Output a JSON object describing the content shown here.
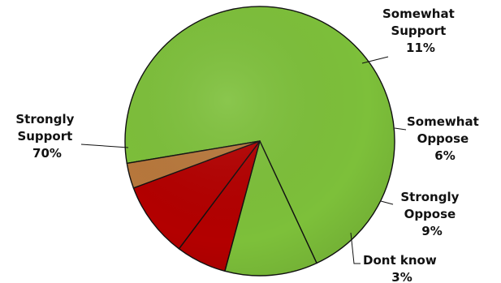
{
  "chart_data": {
    "type": "pie",
    "title": "",
    "slices": [
      {
        "label_lines": [
          "Strongly",
          "Support"
        ],
        "value": 70,
        "value_label": "70%",
        "color": "#7dc03a"
      },
      {
        "label_lines": [
          "Somewhat",
          "Support"
        ],
        "value": 11,
        "value_label": "11%",
        "color": "#7dc03a"
      },
      {
        "label_lines": [
          "Somewhat",
          "Oppose"
        ],
        "value": 6,
        "value_label": "6%",
        "color": "#b30000"
      },
      {
        "label_lines": [
          "Strongly",
          "Oppose"
        ],
        "value": 9,
        "value_label": "9%",
        "color": "#b30000"
      },
      {
        "label_lines": [
          "Dont know"
        ],
        "value": 3,
        "value_label": "3%",
        "color": "#b8783c"
      }
    ],
    "legend": "none",
    "data_labels": "outside with leader lines"
  }
}
